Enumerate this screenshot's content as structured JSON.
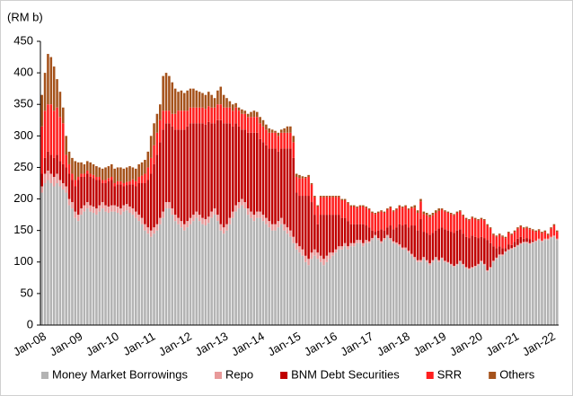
{
  "chart_data": {
    "type": "stacked_bar",
    "y_label": "(RM b)",
    "categories": [
      "Jan-08",
      null,
      null,
      null,
      null,
      null,
      null,
      null,
      null,
      null,
      null,
      null,
      "Jan-09",
      null,
      null,
      null,
      null,
      null,
      null,
      null,
      null,
      null,
      null,
      null,
      "Jan-10",
      null,
      null,
      null,
      null,
      null,
      null,
      null,
      null,
      null,
      null,
      null,
      "Jan-11",
      null,
      null,
      null,
      null,
      null,
      null,
      null,
      null,
      null,
      null,
      null,
      "Jan-12",
      null,
      null,
      null,
      null,
      null,
      null,
      null,
      null,
      null,
      null,
      null,
      "Jan-13",
      null,
      null,
      null,
      null,
      null,
      null,
      null,
      null,
      null,
      null,
      null,
      "Jan-14",
      null,
      null,
      null,
      null,
      null,
      null,
      null,
      null,
      null,
      null,
      null,
      "Jan-15",
      null,
      null,
      null,
      null,
      null,
      null,
      null,
      null,
      null,
      null,
      null,
      "Jan-16",
      null,
      null,
      null,
      null,
      null,
      null,
      null,
      null,
      null,
      null,
      null,
      "Jan-17",
      null,
      null,
      null,
      null,
      null,
      null,
      null,
      null,
      null,
      null,
      null,
      "Jan-18",
      null,
      null,
      null,
      null,
      null,
      null,
      null,
      null,
      null,
      null,
      null,
      "Jan-19",
      null,
      null,
      null,
      null,
      null,
      null,
      null,
      null,
      null,
      null,
      null,
      "Jan-20",
      null,
      null,
      null,
      null,
      null,
      null,
      null,
      null,
      null,
      null,
      null,
      "Jan-21",
      null,
      null,
      null,
      null,
      null,
      null,
      null,
      null,
      null,
      null,
      null,
      "Jan-22",
      null,
      null
    ],
    "series": [
      {
        "name": "Money Market Borrowings",
        "color": "#b3b3b3",
        "values": [
          210,
          225,
          230,
          225,
          220,
          225,
          220,
          215,
          210,
          190,
          185,
          170,
          165,
          175,
          180,
          185,
          180,
          178,
          175,
          180,
          185,
          180,
          178,
          180,
          180,
          178,
          175,
          180,
          182,
          178,
          175,
          170,
          165,
          160,
          150,
          145,
          140,
          145,
          150,
          160,
          170,
          185,
          185,
          175,
          165,
          160,
          155,
          150,
          155,
          160,
          165,
          170,
          165,
          160,
          158,
          162,
          170,
          175,
          165,
          150,
          145,
          150,
          160,
          170,
          180,
          185,
          190,
          185,
          175,
          170,
          165,
          170,
          170,
          165,
          160,
          155,
          150,
          150,
          155,
          160,
          150,
          145,
          140,
          130,
          120,
          115,
          110,
          100,
          95,
          105,
          110,
          105,
          100,
          95,
          100,
          105,
          110,
          115,
          120,
          120,
          125,
          120,
          125,
          125,
          130,
          130,
          125,
          130,
          130,
          135,
          140,
          135,
          130,
          135,
          140,
          135,
          130,
          128,
          125,
          120,
          120,
          115,
          110,
          105,
          100,
          100,
          105,
          100,
          95,
          100,
          105,
          100,
          105,
          100,
          98,
          95,
          92,
          95,
          100,
          95,
          90,
          88,
          90,
          92,
          95,
          100,
          95,
          85,
          90,
          100,
          105,
          110,
          110,
          115,
          118,
          120,
          122,
          125,
          128,
          130,
          130,
          128,
          130,
          132,
          135,
          132,
          135,
          135,
          138,
          140,
          135
        ]
      },
      {
        "name": "Repo",
        "color": "#e89a9a",
        "values": [
          10,
          15,
          15,
          15,
          15,
          15,
          10,
          10,
          10,
          10,
          10,
          10,
          10,
          10,
          10,
          10,
          10,
          10,
          10,
          10,
          10,
          10,
          10,
          10,
          10,
          10,
          10,
          10,
          10,
          10,
          10,
          10,
          10,
          10,
          10,
          10,
          10,
          10,
          10,
          10,
          10,
          10,
          10,
          10,
          10,
          10,
          10,
          10,
          10,
          10,
          10,
          10,
          10,
          10,
          10,
          10,
          10,
          10,
          10,
          10,
          10,
          10,
          10,
          10,
          10,
          10,
          10,
          10,
          10,
          10,
          10,
          10,
          10,
          10,
          10,
          10,
          10,
          10,
          10,
          10,
          10,
          10,
          10,
          10,
          10,
          10,
          10,
          10,
          10,
          10,
          10,
          10,
          10,
          10,
          10,
          10,
          5,
          5,
          5,
          5,
          5,
          5,
          5,
          5,
          5,
          5,
          5,
          5,
          3,
          3,
          3,
          3,
          3,
          3,
          3,
          3,
          3,
          3,
          3,
          3,
          3,
          3,
          3,
          3,
          3,
          3,
          3,
          3,
          3,
          3,
          3,
          3,
          2,
          2,
          2,
          2,
          2,
          2,
          2,
          2,
          2,
          2,
          2,
          2,
          2,
          2,
          2,
          2,
          2,
          2,
          2,
          2,
          2,
          2,
          2,
          2,
          2,
          2,
          2,
          2,
          2,
          2,
          2,
          2,
          2,
          2,
          2,
          2,
          2,
          2,
          2
        ]
      },
      {
        "name": "BNM Debt Securities",
        "color": "#c00000",
        "values": [
          20,
          25,
          30,
          30,
          30,
          30,
          30,
          30,
          30,
          40,
          35,
          40,
          55,
          50,
          45,
          45,
          45,
          45,
          45,
          40,
          30,
          35,
          40,
          40,
          30,
          35,
          38,
          30,
          30,
          35,
          38,
          40,
          50,
          55,
          65,
          75,
          90,
          100,
          110,
          120,
          130,
          125,
          125,
          130,
          135,
          140,
          145,
          150,
          150,
          150,
          145,
          140,
          145,
          150,
          150,
          150,
          140,
          135,
          150,
          165,
          165,
          160,
          150,
          135,
          130,
          120,
          110,
          115,
          120,
          125,
          130,
          125,
          115,
          115,
          115,
          115,
          120,
          120,
          110,
          110,
          120,
          125,
          130,
          125,
          80,
          80,
          85,
          95,
          100,
          80,
          55,
          45,
          65,
          70,
          65,
          60,
          60,
          55,
          50,
          45,
          40,
          40,
          30,
          30,
          25,
          25,
          30,
          23,
          22,
          12,
          5,
          12,
          19,
          12,
          12,
          20,
          19,
          24,
          32,
          35,
          37,
          37,
          45,
          50,
          47,
          65,
          40,
          43,
          45,
          43,
          42,
          50,
          48,
          50,
          50,
          51,
          52,
          53,
          50,
          48,
          48,
          48,
          50,
          46,
          41,
          38,
          41,
          48,
          38,
          23,
          15,
          13,
          10,
          5,
          8,
          5,
          8,
          10,
          10,
          5,
          6,
          6,
          2,
          0,
          0,
          0,
          0,
          0,
          0,
          0,
          0
        ]
      },
      {
        "name": "SRR",
        "color": "#ff1f1f",
        "values": [
          75,
          75,
          75,
          80,
          75,
          75,
          70,
          65,
          20,
          15,
          10,
          10,
          5,
          5,
          5,
          5,
          5,
          5,
          5,
          5,
          5,
          5,
          5,
          5,
          5,
          5,
          5,
          5,
          5,
          5,
          8,
          8,
          10,
          12,
          15,
          20,
          25,
          30,
          35,
          35,
          30,
          20,
          20,
          20,
          25,
          30,
          30,
          30,
          25,
          25,
          25,
          25,
          25,
          25,
          25,
          25,
          25,
          25,
          25,
          25,
          25,
          25,
          25,
          25,
          25,
          25,
          25,
          25,
          25,
          25,
          25,
          25,
          25,
          25,
          25,
          25,
          25,
          25,
          25,
          25,
          25,
          25,
          25,
          25,
          25,
          28,
          28,
          28,
          30,
          28,
          28,
          28,
          28,
          28,
          28,
          28,
          28,
          28,
          28,
          28,
          28,
          28,
          28,
          28,
          26,
          28,
          28,
          28,
          28,
          28,
          28,
          28,
          28,
          28,
          28,
          28,
          28,
          28,
          28,
          28,
          28,
          28,
          28,
          28,
          28,
          28,
          28,
          28,
          28,
          28,
          28,
          28,
          28,
          28,
          28,
          28,
          28,
          28,
          28,
          28,
          28,
          28,
          28,
          28,
          28,
          28,
          28,
          23,
          23,
          18,
          18,
          18,
          18,
          16,
          18,
          16,
          16,
          16,
          16,
          16,
          16,
          16,
          16,
          14,
          13,
          12,
          11,
          6,
          13,
          16,
          11
        ]
      },
      {
        "name": "Others",
        "color": "#a5521b",
        "values": [
          50,
          60,
          80,
          75,
          70,
          45,
          40,
          25,
          30,
          20,
          25,
          30,
          23,
          18,
          15,
          15,
          18,
          17,
          17,
          15,
          18,
          20,
          19,
          20,
          23,
          22,
          22,
          23,
          23,
          24,
          19,
          20,
          20,
          21,
          22,
          25,
          35,
          35,
          30,
          25,
          55,
          60,
          55,
          50,
          40,
          30,
          32,
          28,
          32,
          30,
          30,
          27,
          25,
          23,
          22,
          23,
          20,
          15,
          22,
          28,
          20,
          15,
          10,
          10,
          7,
          5,
          7,
          5,
          5,
          8,
          10,
          8,
          10,
          10,
          8,
          7,
          5,
          3,
          5,
          5,
          7,
          10,
          10,
          10,
          5,
          5,
          3,
          2,
          3,
          2,
          2,
          2,
          2,
          2,
          2,
          2,
          2,
          2,
          2,
          2,
          2,
          2,
          2,
          2,
          2,
          2,
          2,
          2,
          2,
          2,
          2,
          2,
          2,
          2,
          2,
          2,
          2,
          2,
          2,
          2,
          2,
          2,
          2,
          4,
          4,
          4,
          4,
          4,
          4,
          4,
          4,
          4,
          2,
          2,
          2,
          2,
          2,
          2,
          2,
          2,
          2,
          2,
          2,
          2,
          2,
          2,
          2,
          2,
          2,
          2,
          2,
          2,
          2,
          2,
          2,
          2,
          2,
          2,
          2,
          2,
          2,
          2,
          2,
          2,
          2,
          2,
          2,
          2,
          2,
          2,
          2
        ]
      }
    ],
    "ylim": [
      0,
      450
    ],
    "yticks": [
      0,
      50,
      100,
      150,
      200,
      250,
      300,
      350,
      400,
      450
    ],
    "grid": false,
    "legend": "bottom"
  }
}
